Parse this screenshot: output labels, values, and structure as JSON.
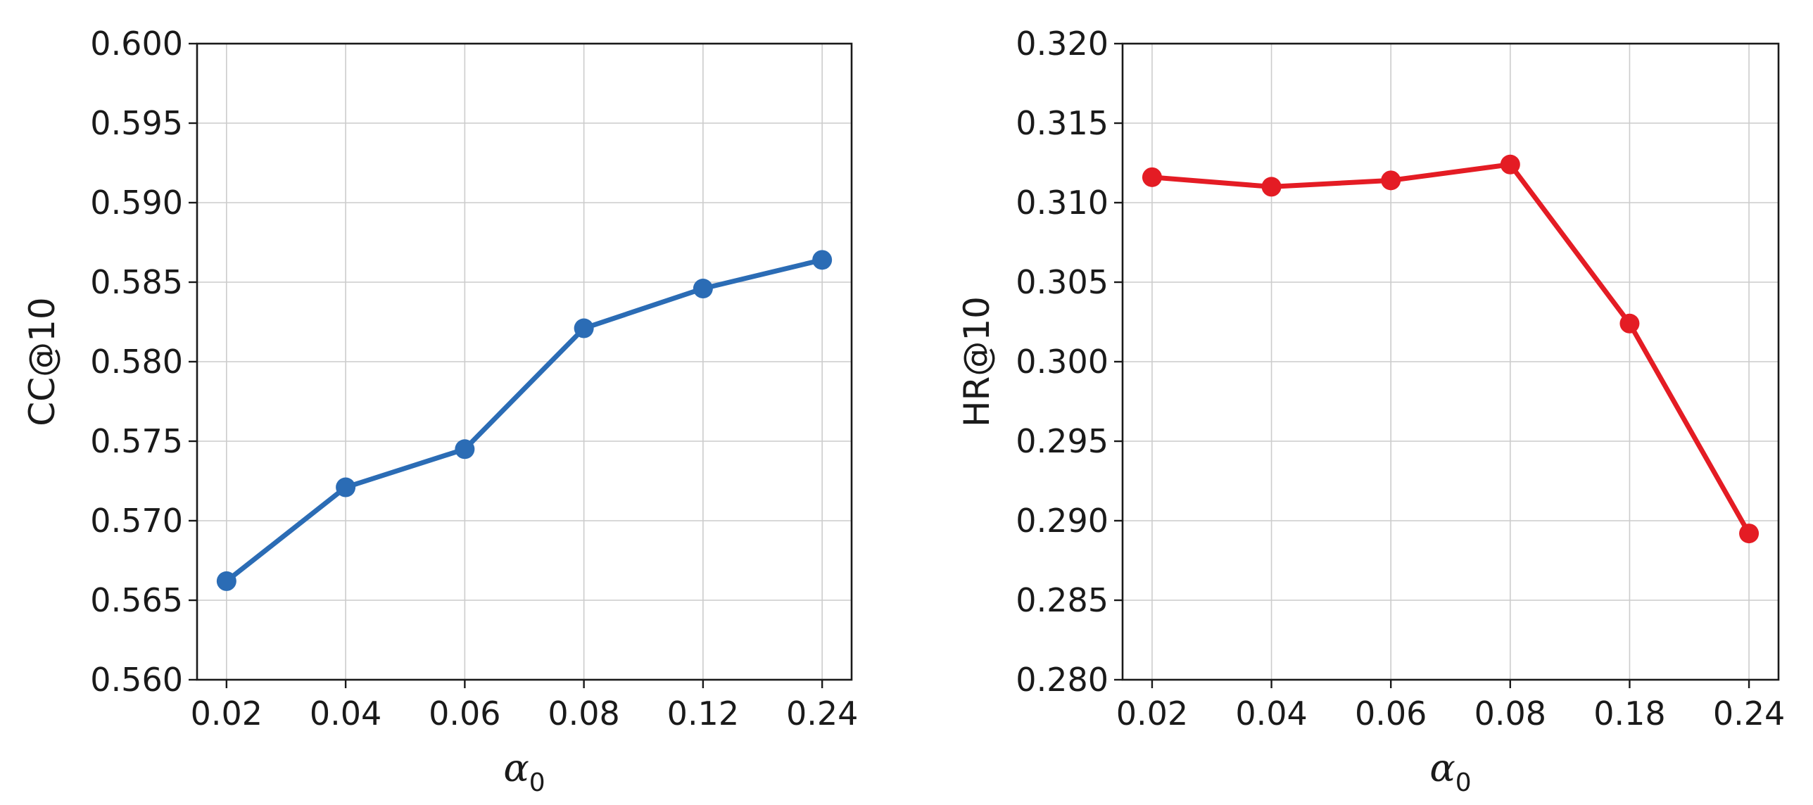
{
  "chart_data": [
    {
      "type": "line",
      "categories": [
        "0.02",
        "0.04",
        "0.06",
        "0.08",
        "0.12",
        "0.24"
      ],
      "series": [
        {
          "values": [
            0.5662,
            0.5721,
            0.5745,
            0.5821,
            0.5846,
            0.5864
          ]
        }
      ],
      "xlabel_symbol": "α",
      "xlabel_subscript": "0",
      "ylabel": "CC@10",
      "ylim": [
        0.56,
        0.6
      ],
      "yticks": [
        "0.560",
        "0.565",
        "0.570",
        "0.575",
        "0.580",
        "0.585",
        "0.590",
        "0.595",
        "0.600"
      ],
      "grid": true,
      "color": "#2b6cb5"
    },
    {
      "type": "line",
      "categories": [
        "0.02",
        "0.04",
        "0.06",
        "0.08",
        "0.18",
        "0.24"
      ],
      "series": [
        {
          "values": [
            0.3116,
            0.311,
            0.3114,
            0.3124,
            0.3024,
            0.2892
          ]
        }
      ],
      "xlabel_symbol": "α",
      "xlabel_subscript": "0",
      "ylabel": "HR@10",
      "ylim": [
        0.28,
        0.32
      ],
      "yticks": [
        "0.280",
        "0.285",
        "0.290",
        "0.295",
        "0.300",
        "0.305",
        "0.310",
        "0.315",
        "0.320"
      ],
      "grid": true,
      "color": "#e41c24"
    }
  ]
}
